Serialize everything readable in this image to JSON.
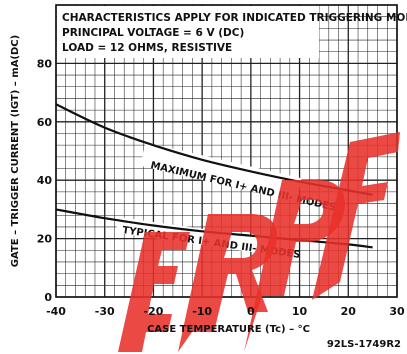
{
  "chart_data": {
    "type": "line",
    "title": "",
    "notes": [
      "CHARACTERISTICS APPLY FOR INDICATED TRIGGERING MODES",
      "PRINCIPAL VOLTAGE = 6 V (DC)",
      "LOAD = 12 OHMS, RESISTIVE"
    ],
    "xlabel": "CASE TEMPERATURE (Tc) – °C",
    "ylabel": "GATE – TRIGGER CURRENT (IGT) – mA(DC)",
    "xlim": [
      -40,
      30
    ],
    "ylim": [
      0,
      100
    ],
    "x_ticks": [
      "-40",
      "-30",
      "-20",
      "-10",
      "0",
      "10",
      "20",
      "30"
    ],
    "y_ticks": [
      "0",
      "20",
      "40",
      "60",
      "80"
    ],
    "grid": true,
    "series": [
      {
        "name": "MAXIMUM FOR I+ AND III- MODES",
        "x": [
          -40,
          -30,
          -20,
          -10,
          0,
          10,
          20,
          25
        ],
        "y": [
          66,
          58,
          52,
          47,
          43,
          39.5,
          36.5,
          35
        ]
      },
      {
        "name": "TYPICAL FOR I+ AND III- MODES",
        "x": [
          -40,
          -30,
          -20,
          -10,
          0,
          10,
          20,
          25
        ],
        "y": [
          30,
          27,
          24.5,
          22.5,
          21,
          19.5,
          18,
          17
        ]
      }
    ],
    "figure_code": "92LS-1749R2",
    "colors": {
      "curve": "#111111",
      "grid": "#222222",
      "stamp": "#e8302a"
    }
  }
}
